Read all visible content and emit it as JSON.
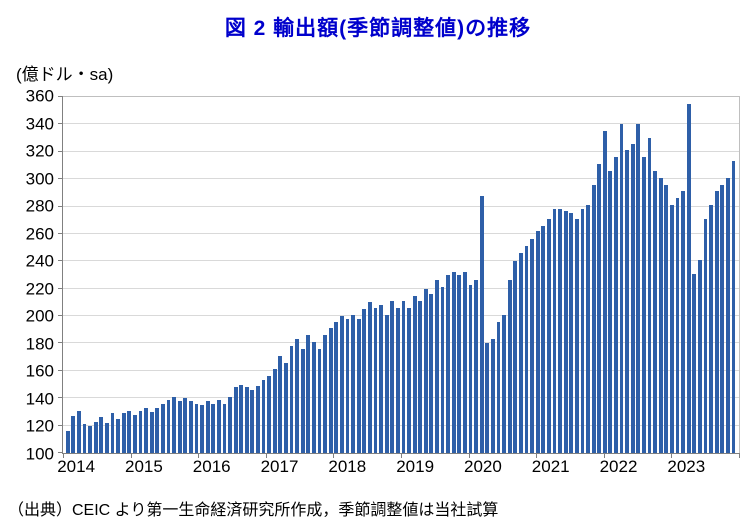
{
  "chart_data": {
    "type": "bar",
    "title": "図 2  輸出額(季節調整値)の推移",
    "unit_label": "(億ドル・sa)",
    "xlabel": "",
    "ylabel": "億ドル・sa",
    "frequency": "monthly",
    "categories": [
      "2014",
      "2015",
      "2016",
      "2017",
      "2018",
      "2019",
      "2020",
      "2021",
      "2022",
      "2023"
    ],
    "ylim": [
      100,
      360
    ],
    "ytick_step": 20,
    "grid": true,
    "legend": "none",
    "bar_color": "#2E5FA8",
    "values": [
      116,
      127,
      131,
      121,
      120,
      123,
      126,
      122,
      129,
      125,
      129,
      131,
      128,
      131,
      133,
      130,
      133,
      136,
      139,
      141,
      138,
      140,
      138,
      136,
      135,
      138,
      136,
      139,
      136,
      141,
      148,
      150,
      148,
      146,
      149,
      153,
      156,
      161,
      171,
      166,
      178,
      183,
      176,
      186,
      181,
      176,
      186,
      191,
      196,
      200,
      198,
      201,
      198,
      205,
      210,
      206,
      208,
      201,
      211,
      206,
      211,
      206,
      215,
      211,
      220,
      216,
      226,
      221,
      230,
      232,
      230,
      232,
      223,
      226,
      288,
      180,
      183,
      196,
      201,
      226,
      240,
      246,
      251,
      256,
      262,
      266,
      271,
      278,
      278,
      277,
      275,
      271,
      278,
      281,
      296,
      311,
      335,
      306,
      316,
      340,
      321,
      326,
      340,
      316,
      330,
      306,
      301,
      296,
      281,
      286,
      291,
      355,
      231,
      241,
      271,
      281,
      291,
      296,
      301,
      313
    ]
  },
  "footer": {
    "source": "（出典）CEIC より第一生命経済研究所作成，季節調整値は当社試算"
  }
}
